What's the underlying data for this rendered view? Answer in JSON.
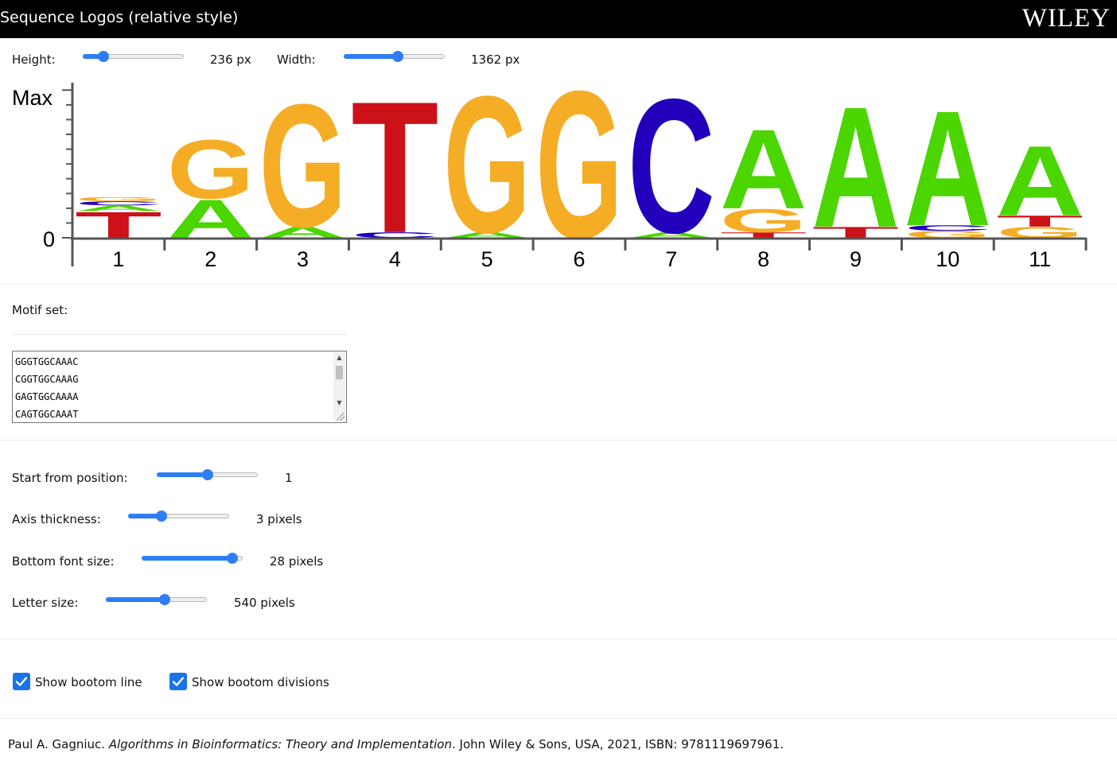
{
  "window": {
    "title": "Sequence Logos (relative style)",
    "brand": "WILEY"
  },
  "controls": {
    "height": {
      "label": "Height:",
      "value_text": "236 px",
      "fraction": 0.17
    },
    "width": {
      "label": "Width:",
      "value_text": "1362 px",
      "fraction": 0.54
    },
    "start_position": {
      "label": "Start from position:",
      "value_text": "1",
      "fraction": 0.5
    },
    "axis_thickness": {
      "label": "Axis thickness:",
      "value_text": "3 pixels",
      "fraction": 0.31
    },
    "bottom_font_size": {
      "label": "Bottom font size:",
      "value_text": "28 pixels",
      "fraction": 0.95
    },
    "letter_size": {
      "label": "Letter size:",
      "value_text": "540 pixels",
      "fraction": 0.59
    }
  },
  "motif": {
    "label": "Motif set:",
    "sequences": [
      "GGGTGGCAAAC",
      "CGGTGGCAAAG",
      "GAGTGGCAAAA",
      "CAGTGGCAAAT"
    ]
  },
  "options": {
    "show_bottom_line": {
      "label": "Show bootom line",
      "checked": true
    },
    "show_bottom_divisions": {
      "label": "Show bootom divisions",
      "checked": true
    }
  },
  "colors": {
    "A": "#4bd600",
    "C": "#2200bb",
    "G": "#f5ad26",
    "T": "#cc1119",
    "accent": "#2f7df6"
  },
  "chart_data": {
    "type": "sequence-logo",
    "y_axis": {
      "top_label": "Max",
      "bottom_label": "0"
    },
    "positions": [
      "1",
      "2",
      "3",
      "4",
      "5",
      "6",
      "7",
      "8",
      "9",
      "10",
      "11"
    ],
    "stacks": [
      [
        {
          "letter": "T",
          "value": 0.19
        },
        {
          "letter": "A",
          "value": 0.04
        },
        {
          "letter": "C",
          "value": 0.03
        },
        {
          "letter": "G",
          "value": 0.03
        }
      ],
      [
        {
          "letter": "A",
          "value": 0.28
        },
        {
          "letter": "G",
          "value": 0.43
        }
      ],
      [
        {
          "letter": "A",
          "value": 0.08
        },
        {
          "letter": "G",
          "value": 0.9
        }
      ],
      [
        {
          "letter": "C",
          "value": 0.04
        },
        {
          "letter": "T",
          "value": 0.96
        }
      ],
      [
        {
          "letter": "A",
          "value": 0.04
        },
        {
          "letter": "G",
          "value": 1.0
        }
      ],
      [
        {
          "letter": "G",
          "value": 1.08
        }
      ],
      [
        {
          "letter": "A",
          "value": 0.04
        },
        {
          "letter": "C",
          "value": 0.98
        }
      ],
      [
        {
          "letter": "T",
          "value": 0.04
        },
        {
          "letter": "G",
          "value": 0.17
        },
        {
          "letter": "A",
          "value": 0.58
        }
      ],
      [
        {
          "letter": "T",
          "value": 0.08
        },
        {
          "letter": "A",
          "value": 0.88
        }
      ],
      [
        {
          "letter": "G",
          "value": 0.05
        },
        {
          "letter": "C",
          "value": 0.04
        },
        {
          "letter": "A",
          "value": 0.84
        }
      ],
      [
        {
          "letter": "G",
          "value": 0.08
        },
        {
          "letter": "T",
          "value": 0.08
        },
        {
          "letter": "A",
          "value": 0.51
        }
      ]
    ]
  },
  "citation": {
    "author": "Paul A. Gagniuc. ",
    "book": "Algorithms in Bioinformatics: Theory and Implementation",
    "rest": ". John Wiley & Sons, USA, 2021, ISBN: 9781119697961."
  }
}
